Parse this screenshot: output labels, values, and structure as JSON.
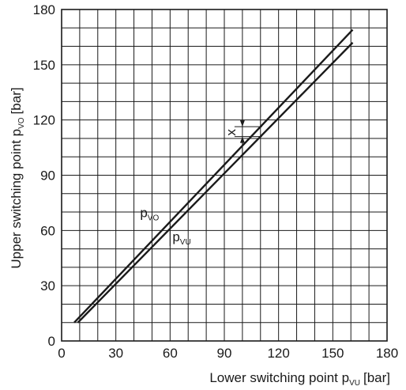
{
  "chart_data": {
    "type": "line",
    "title": "",
    "xlabel": {
      "main": "Lower switching point p",
      "sub": "VU",
      "unit": "[bar]"
    },
    "ylabel": {
      "main": "Upper switching point p",
      "sub": "VO",
      "unit": "[bar]"
    },
    "xlim": [
      0,
      180
    ],
    "ylim": [
      0,
      180
    ],
    "xticks": [
      "0",
      "30",
      "60",
      "90",
      "120",
      "150",
      "180"
    ],
    "yticks": [
      "0",
      "30",
      "60",
      "90",
      "120",
      "150",
      "180"
    ],
    "grid": true,
    "grid_step": 10,
    "series": [
      {
        "name": "VO",
        "label_main": "p",
        "label_sub": "VO",
        "x": [
          7,
          161
        ],
        "y": [
          10,
          169
        ]
      },
      {
        "name": "VU",
        "label_main": "p",
        "label_sub": "VU",
        "x": [
          9,
          161
        ],
        "y": [
          10,
          162
        ]
      }
    ],
    "annotations": [
      {
        "text": "x",
        "description": "hysteresis between upper and lower switching point",
        "at_x": 100
      }
    ]
  }
}
